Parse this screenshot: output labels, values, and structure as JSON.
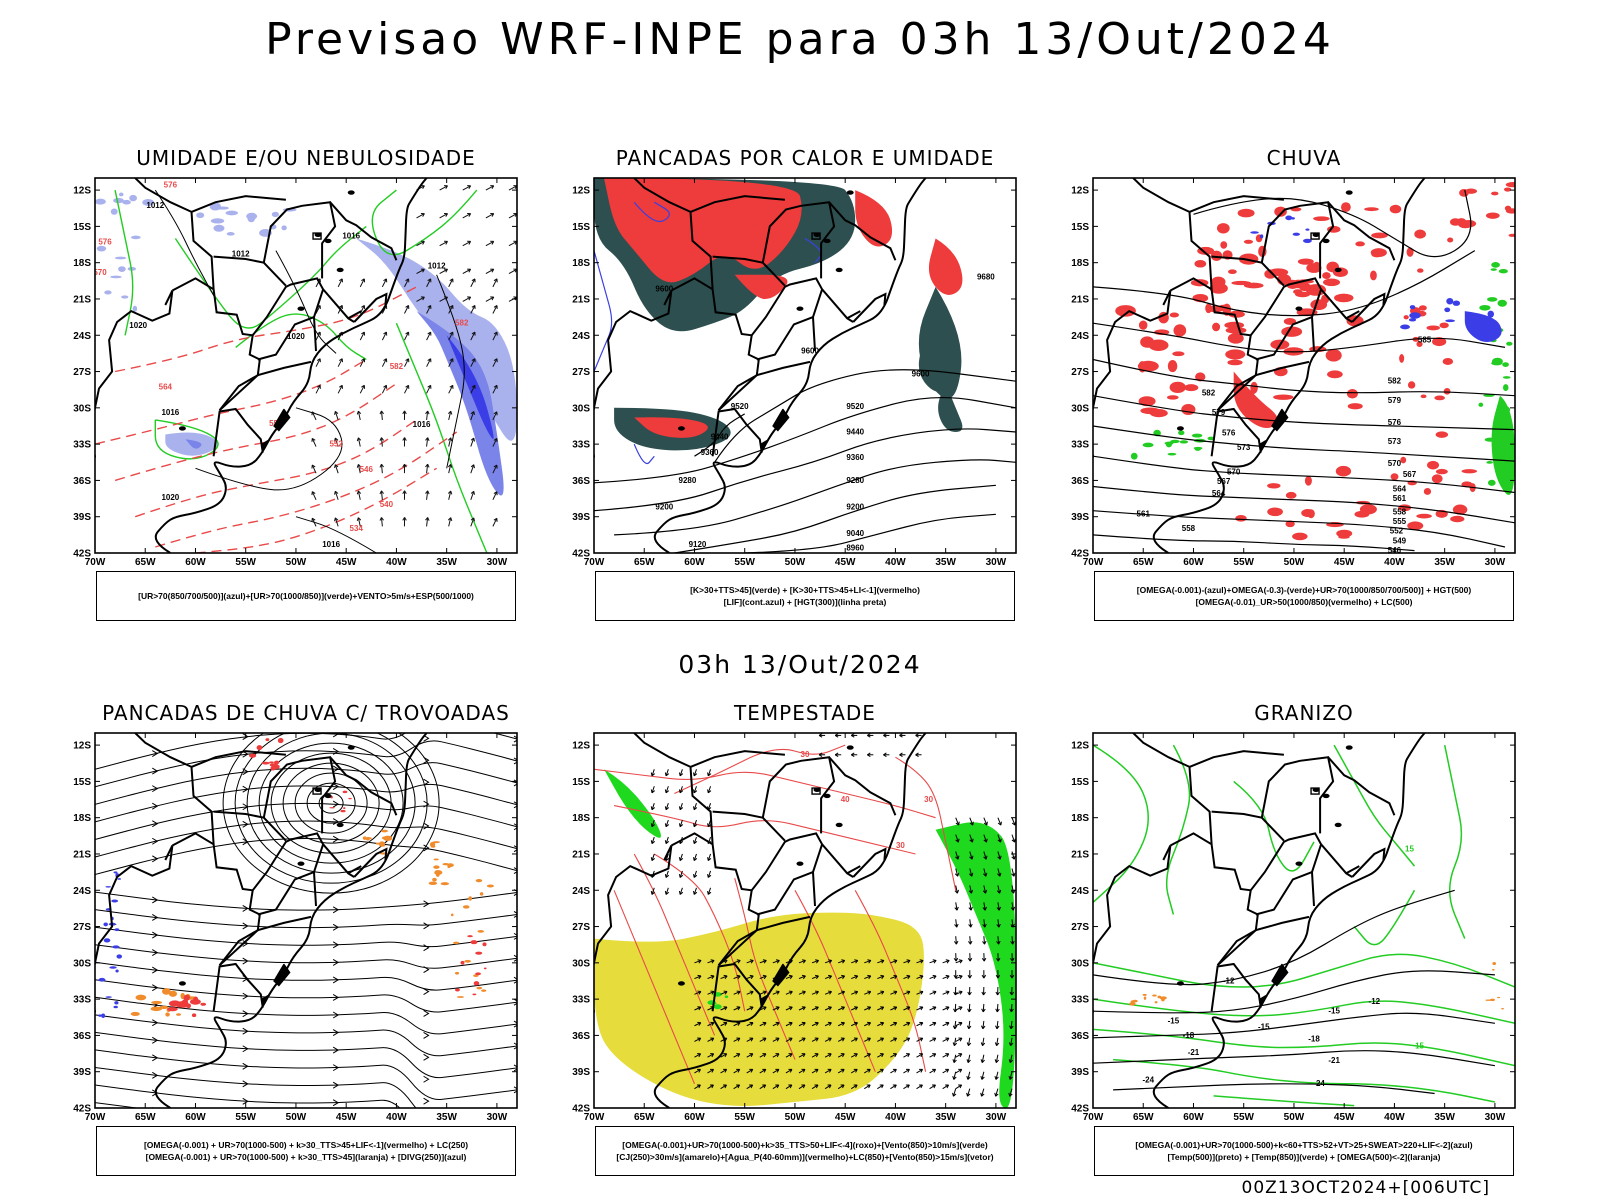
{
  "header": {
    "title": "Previsao WRF-INPE  para 03h 13/Out/2024"
  },
  "mid_title": "03h 13/Out/2024",
  "footer": "00Z13OCT2024+[006UTC]",
  "axes": {
    "lat_labels": [
      "12S",
      "15S",
      "18S",
      "21S",
      "24S",
      "27S",
      "30S",
      "33S",
      "36S",
      "39S",
      "42S"
    ],
    "lon_labels": [
      "70W",
      "65W",
      "60W",
      "55W",
      "50W",
      "45W",
      "40W",
      "35W",
      "30W"
    ]
  },
  "panels": [
    {
      "id": "umidade",
      "title": "UMIDADE E/OU NEBULOSIDADE",
      "legend": [
        "[UR>70(850/700/500)](azul)+[UR>70(1000/850)](verde)+VENTO>5m/s+ESP(500/1000)"
      ],
      "contour_labels": [
        "1012",
        "1016",
        "1012",
        "1020",
        "1016",
        "1020",
        "1012",
        "1016",
        "1020",
        "1016",
        "576",
        "576",
        "570",
        "564",
        "558",
        "552",
        "546",
        "540",
        "534",
        "582",
        "582"
      ]
    },
    {
      "id": "pancadas-calor",
      "title": "PANCADAS POR CALOR E UMIDADE",
      "legend": [
        "[K>30+TTS>45](verde) + [K>30+TTS>45+LI<-1](vermelho)",
        "[LIF](cont.azul) + [HGT(300)](linha preta)"
      ],
      "contour_labels": [
        "9600",
        "9600",
        "9520",
        "9440",
        "9360",
        "9280",
        "9200",
        "9120",
        "9040",
        "8960",
        "9600",
        "9680",
        "9520",
        "9440",
        "9360",
        "9280",
        "9200"
      ]
    },
    {
      "id": "chuva",
      "title": "CHUVA",
      "legend": [
        "[OMEGA(-0.001)-(azul)+OMEGA(-0.3)-(verde)+UR>70(1000/850/700/500)] + HGT(500)",
        "[OMEGA(-0.01)_UR>50(1000/850)(vermelho) + LC(500)"
      ],
      "contour_labels": [
        "585",
        "582",
        "579",
        "576",
        "573",
        "570",
        "567",
        "564",
        "561",
        "558",
        "555",
        "552",
        "549",
        "546",
        "582",
        "579",
        "576",
        "573",
        "570",
        "567",
        "564",
        "561",
        "558"
      ]
    },
    {
      "id": "trovoadas",
      "title": "PANCADAS DE CHUVA C/ TROVOADAS",
      "legend": [
        "[OMEGA(-0.001) + UR>70(1000-500) + k>30_TTS>45+LIF<-1](vermelho) + LC(250)",
        "[OMEGA(-0.001) + UR>70(1000-500) + k>30_TTS>45](laranja) + [DIVG(250)](azul)"
      ],
      "contour_labels": []
    },
    {
      "id": "tempestade",
      "title": "TEMPESTADE",
      "legend": [
        "[OMEGA(-0.001)+UR>70(1000-500)+k>35_TTS>50+LIF<-4](roxo)+[Vento(850)>10m/s](verde)",
        "[CJ(250)>30m/s](amarelo)+[Agua_P(40-60mm)](vermelho)+LC(850)+[Vento(850)>15m/s](vetor)"
      ],
      "contour_labels": [
        "40",
        "30",
        "30",
        "30"
      ]
    },
    {
      "id": "granizo",
      "title": "GRANIZO",
      "legend": [
        "[OMEGA(-0.001)+UR>70(1000-500)+k<60+TTS>52+VT>25+SWEAT>220+LIF<-2](azul)",
        "[Temp(500)](preto) + [Temp(850)](verde) + [OMEGA(500)<-2](laranja)"
      ],
      "contour_labels": [
        "-12",
        "-12",
        "-15",
        "-15",
        "-15",
        "-18",
        "-18",
        "-21",
        "-21",
        "-24",
        "-24",
        "15",
        "15"
      ]
    }
  ],
  "colors": {
    "blue_light": "#aab2ee",
    "blue_mid": "#7b84e8",
    "blue_dark": "#3b3ee6",
    "green": "#22cc22",
    "red": "#ee3b3b",
    "dark_teal": "#2e4f4f",
    "orange": "#f08c2c",
    "yellow": "#e6dc3c",
    "green_bright": "#1fd91f",
    "contour_red": "#e84a4a"
  }
}
